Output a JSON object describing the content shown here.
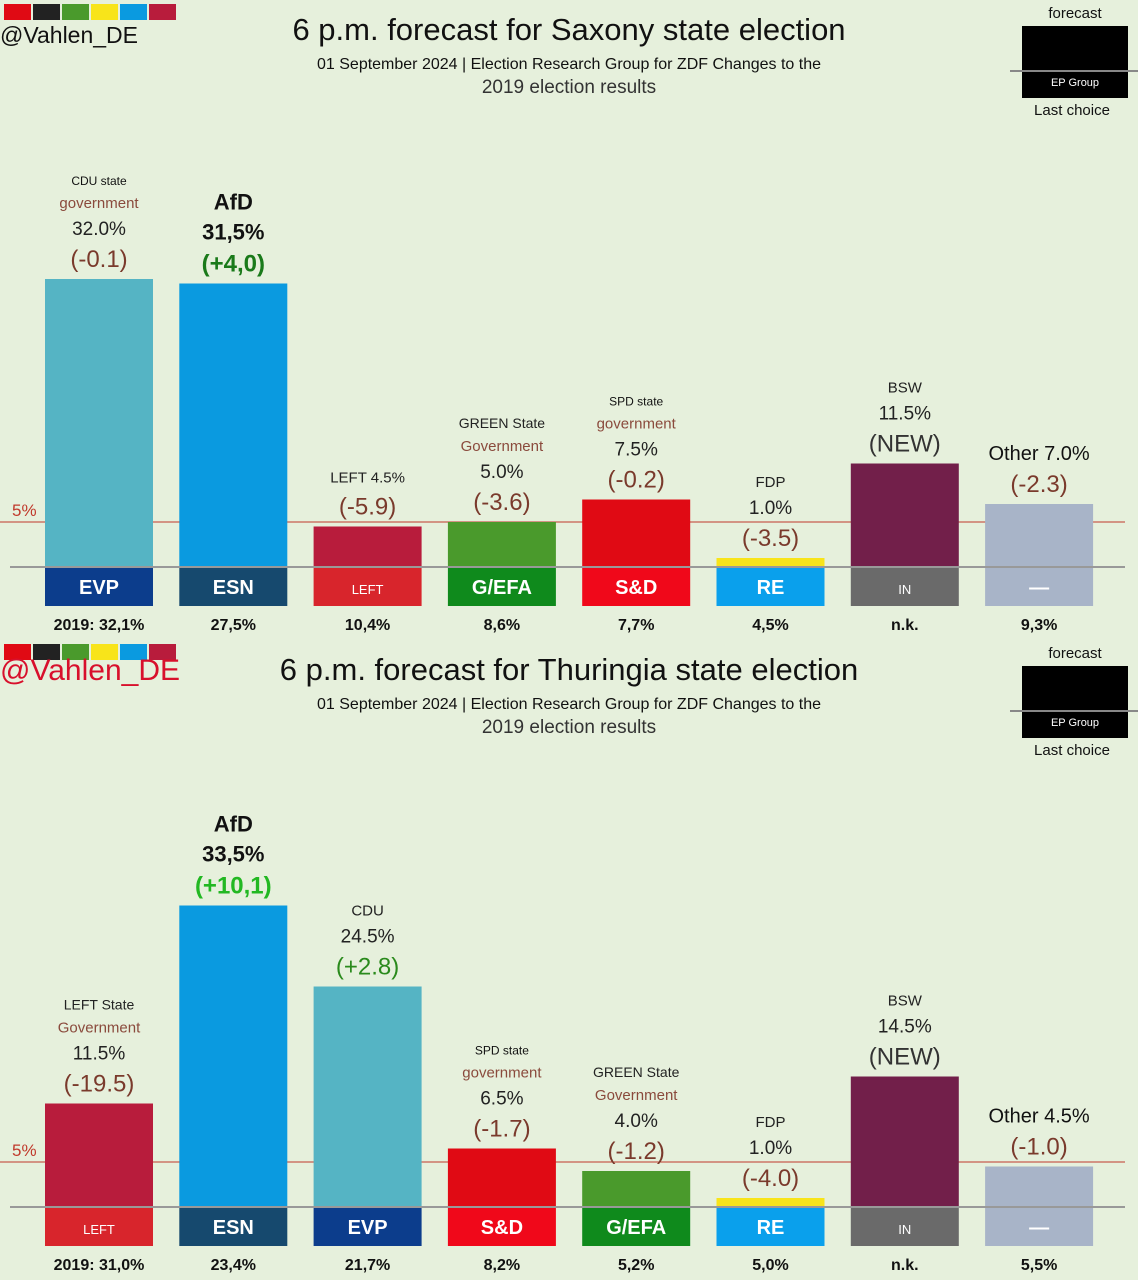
{
  "panels": [
    {
      "handle": "@Vahlen_DE",
      "title": "6 p.m. forecast for Saxony state election",
      "subtitle": "01 September 2024 | Election Research Group for ZDF Changes to the",
      "subtitle2": "2019 election results",
      "legend": {
        "top": "forecast",
        "box": "EP Group",
        "bottom": "Last choice"
      },
      "threshold_label": "5%",
      "chart_data": {
        "type": "bar",
        "ylim": [
          0,
          35
        ],
        "threshold": 5,
        "bars": [
          {
            "lines": [
              "CDU state",
              "government",
              "32.0%",
              "(-0.1)"
            ],
            "value": 32.0,
            "color": "#55b4c4",
            "group": "EVP",
            "group_color": "#0c3d8c",
            "prev": "2019: 32,1%"
          },
          {
            "lines": [
              "AfD",
              "31,5%",
              "(+4,0)"
            ],
            "value": 31.5,
            "color": "#0a9ae0",
            "group": "ESN",
            "group_color": "#16496e",
            "prev": "27,5%"
          },
          {
            "lines": [
              "LEFT 4.5%",
              "(-5.9)"
            ],
            "value": 4.5,
            "color": "#b81c3c",
            "group": "LEFT",
            "group_color": "#d8252c",
            "prev": "10,4%"
          },
          {
            "lines": [
              "GREEN State",
              "Government",
              "5.0%",
              "(-3.6)"
            ],
            "value": 5.0,
            "color": "#4a9a2c",
            "group": "G/EFA",
            "group_color": "#0f8a1c",
            "prev": "8,6%"
          },
          {
            "lines": [
              "SPD state",
              "government",
              "7.5%",
              "(-0.2)"
            ],
            "value": 7.5,
            "color": "#e00a14",
            "group": "S&D",
            "group_color": "#f0081a",
            "prev": "7,7%"
          },
          {
            "lines": [
              "FDP",
              "1.0%",
              "(-3.5)"
            ],
            "value": 1.0,
            "color": "#f8e41a",
            "group": "RE",
            "group_color": "#0aa0ec",
            "prev": "4,5%"
          },
          {
            "lines": [
              "BSW",
              "11.5%",
              "(NEW)"
            ],
            "value": 11.5,
            "color": "#721f4a",
            "group": "IN",
            "group_color": "#6a6a6a",
            "prev": "n.k."
          },
          {
            "lines": [
              "Other 7.0%",
              "(-2.3)"
            ],
            "value": 7.0,
            "color": "#a8b4c8",
            "group": "—",
            "group_color": "#a8b4c8",
            "prev": "9,3%"
          }
        ]
      }
    },
    {
      "handle": "@Vahlen_DE",
      "title": "6 p.m. forecast for Thuringia state election",
      "subtitle": "01 September 2024 | Election Research Group for ZDF Changes to the",
      "subtitle2": "2019 election results",
      "legend": {
        "top": "forecast",
        "box": "EP Group",
        "bottom": "Last choice"
      },
      "threshold_label": "5%",
      "chart_data": {
        "type": "bar",
        "ylim": [
          0,
          35
        ],
        "threshold": 5,
        "bars": [
          {
            "lines": [
              "LEFT State",
              "Government",
              "11.5%",
              "(-19.5)"
            ],
            "value": 11.5,
            "color": "#b81c3c",
            "group": "LEFT",
            "group_color": "#d8252c",
            "prev": "2019: 31,0%"
          },
          {
            "lines": [
              "AfD",
              "33,5%",
              "(+10,1)"
            ],
            "value": 33.5,
            "color": "#0a9ae0",
            "group": "ESN",
            "group_color": "#16496e",
            "prev": "23,4%"
          },
          {
            "lines": [
              "CDU",
              "24.5%",
              "(+2.8)"
            ],
            "value": 24.5,
            "color": "#55b4c4",
            "group": "EVP",
            "group_color": "#0c3d8c",
            "prev": "21,7%"
          },
          {
            "lines": [
              "SPD state",
              "government",
              "6.5%",
              "(-1.7)"
            ],
            "value": 6.5,
            "color": "#e00a14",
            "group": "S&D",
            "group_color": "#f0081a",
            "prev": "8,2%"
          },
          {
            "lines": [
              "GREEN State",
              "Government",
              "4.0%",
              "(-1.2)"
            ],
            "value": 4.0,
            "color": "#4a9a2c",
            "group": "G/EFA",
            "group_color": "#0f8a1c",
            "prev": "5,2%"
          },
          {
            "lines": [
              "FDP",
              "1.0%",
              "(-4.0)"
            ],
            "value": 1.0,
            "color": "#f8e41a",
            "group": "RE",
            "group_color": "#0aa0ec",
            "prev": "5,0%"
          },
          {
            "lines": [
              "BSW",
              "14.5%",
              "(NEW)"
            ],
            "value": 14.5,
            "color": "#721f4a",
            "group": "IN",
            "group_color": "#6a6a6a",
            "prev": "n.k."
          },
          {
            "lines": [
              "Other 4.5%",
              "(-1.0)"
            ],
            "value": 4.5,
            "color": "#a8b4c8",
            "group": "—",
            "group_color": "#a8b4c8",
            "prev": "5,5%"
          }
        ]
      }
    }
  ]
}
